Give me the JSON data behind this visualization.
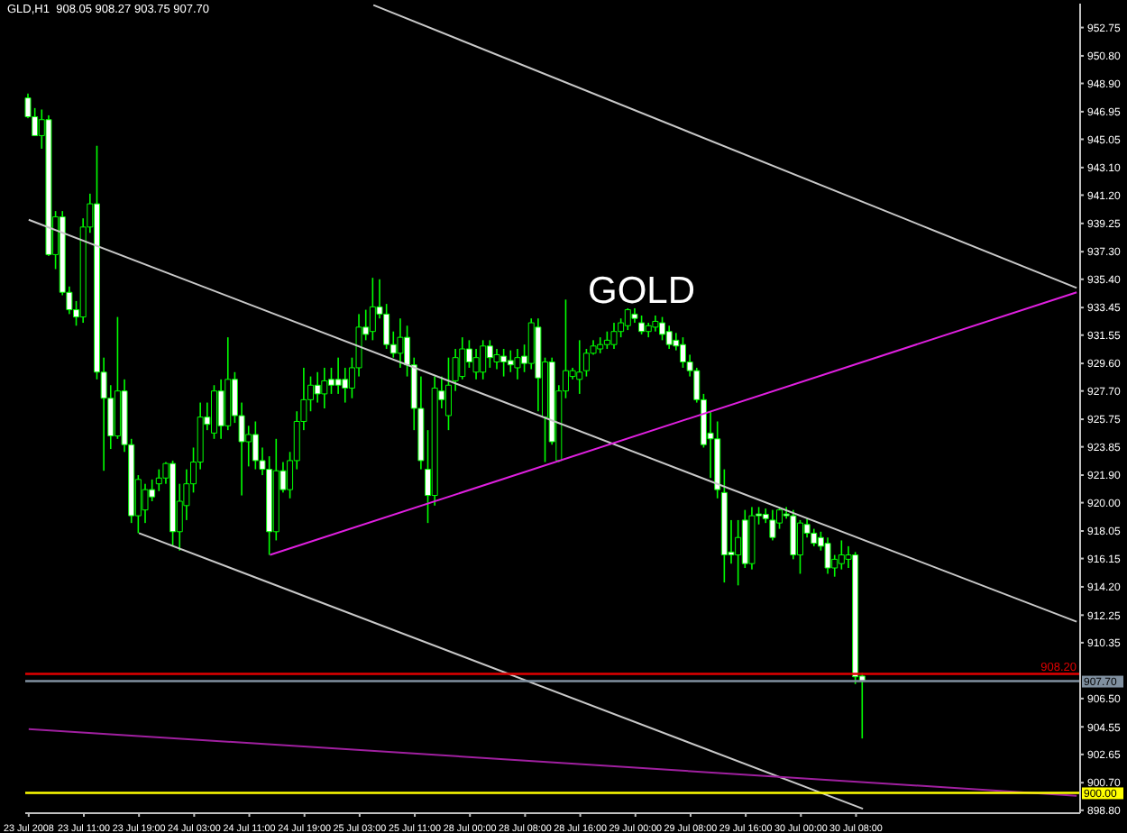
{
  "chart_data": {
    "type": "candlestick",
    "title": "GOLD",
    "subtitle": "GLD,H1  908.05 908.27 903.75 907.70",
    "color": "#00ff00",
    "categories": [
      "23 Jul 2008",
      null,
      null,
      null,
      null,
      null,
      null,
      null,
      "23 Jul 11:00",
      null,
      null,
      null,
      null,
      null,
      null,
      null,
      "23 Jul 19:00",
      null,
      null,
      null,
      null,
      null,
      null,
      null,
      "24 Jul 03:00",
      null,
      null,
      null,
      null,
      null,
      null,
      null,
      "24 Jul 11:00",
      null,
      null,
      null,
      null,
      null,
      null,
      null,
      "24 Jul 19:00",
      null,
      null,
      null,
      null,
      null,
      null,
      null,
      "25 Jul 03:00",
      null,
      null,
      null,
      null,
      null,
      null,
      null,
      "25 Jul 11:00",
      null,
      null,
      null,
      null,
      null,
      null,
      null,
      "28 Jul 00:00",
      null,
      null,
      null,
      null,
      null,
      null,
      null,
      "28 Jul 08:00",
      null,
      null,
      null,
      null,
      null,
      null,
      null,
      "28 Jul 16:00",
      null,
      null,
      null,
      null,
      null,
      null,
      null,
      "29 Jul 00:00",
      null,
      null,
      null,
      null,
      null,
      null,
      null,
      "29 Jul 08:00",
      null,
      null,
      null,
      null,
      null,
      null,
      null,
      "29 Jul 16:00",
      null,
      null,
      null,
      null,
      null,
      null,
      null,
      "30 Jul 00:00",
      null,
      null,
      null,
      null,
      null,
      null,
      null,
      "30 Jul 08:00",
      null,
      null,
      null,
      null,
      null,
      null,
      null,
      null,
      null,
      null,
      null,
      null,
      null,
      null,
      null,
      null,
      null,
      null,
      null,
      null,
      null,
      null,
      null,
      null,
      null,
      null,
      null,
      null,
      null,
      null,
      null,
      null
    ],
    "ohlc": [
      [
        947.9,
        948.2,
        946.5,
        946.6
      ],
      [
        946.6,
        947.2,
        945.3,
        945.3
      ],
      [
        945.3,
        947.1,
        944.4,
        946.4
      ],
      [
        946.4,
        946.7,
        937.0,
        937.1
      ],
      [
        937.1,
        940.1,
        936.1,
        939.7
      ],
      [
        939.7,
        940.1,
        934.3,
        934.5
      ],
      [
        934.5,
        934.9,
        933.0,
        933.3
      ],
      [
        933.3,
        933.9,
        932.2,
        932.8
      ],
      [
        932.8,
        939.6,
        932.4,
        939.0
      ],
      [
        939.0,
        941.3,
        938.6,
        940.6
      ],
      [
        940.6,
        944.6,
        928.5,
        929.0
      ],
      [
        929.0,
        930.0,
        922.2,
        927.2
      ],
      [
        927.2,
        928.1,
        923.7,
        924.6
      ],
      [
        924.6,
        932.8,
        924.4,
        927.7
      ],
      [
        927.7,
        928.5,
        923.5,
        924.0
      ],
      [
        924.0,
        924.4,
        918.6,
        919.1
      ],
      [
        919.1,
        921.9,
        917.9,
        921.6
      ],
      [
        919.5,
        921.3,
        918.6,
        920.9
      ],
      [
        920.9,
        921.6,
        920.1,
        920.4
      ],
      [
        921.3,
        922.3,
        920.8,
        921.7
      ],
      [
        921.7,
        922.8,
        921.3,
        922.7
      ],
      [
        922.7,
        922.9,
        917.0,
        918.0
      ],
      [
        918.0,
        921.3,
        916.7,
        920.1
      ],
      [
        919.8,
        922.3,
        918.8,
        921.3
      ],
      [
        921.3,
        923.8,
        920.7,
        922.8
      ],
      [
        922.8,
        926.9,
        922.3,
        925.9
      ],
      [
        925.9,
        926.9,
        925.0,
        925.4
      ],
      [
        924.8,
        928.1,
        924.4,
        927.7
      ],
      [
        927.7,
        928.5,
        924.4,
        925.3
      ],
      [
        925.3,
        931.4,
        925.0,
        928.5
      ],
      [
        928.5,
        929.0,
        925.5,
        926.0
      ],
      [
        926.0,
        926.9,
        920.5,
        924.2
      ],
      [
        924.2,
        925.3,
        922.5,
        924.7
      ],
      [
        924.7,
        925.6,
        922.3,
        922.9
      ],
      [
        922.9,
        923.8,
        921.9,
        922.3
      ],
      [
        922.3,
        923.2,
        916.4,
        918.0
      ],
      [
        918.0,
        924.4,
        917.4,
        922.2
      ],
      [
        922.2,
        922.8,
        920.7,
        920.9
      ],
      [
        920.9,
        923.5,
        920.3,
        922.9
      ],
      [
        922.9,
        926.3,
        922.3,
        925.6
      ],
      [
        925.6,
        929.3,
        925.0,
        927.1
      ],
      [
        927.1,
        928.7,
        926.3,
        928.1
      ],
      [
        928.1,
        929.0,
        926.9,
        927.5
      ],
      [
        927.5,
        929.3,
        926.5,
        928.4
      ],
      [
        928.5,
        929.3,
        927.5,
        928.1
      ],
      [
        928.5,
        930.0,
        927.5,
        928.1
      ],
      [
        928.5,
        929.3,
        926.9,
        927.9
      ],
      [
        927.9,
        930.0,
        927.2,
        929.3
      ],
      [
        929.3,
        933.0,
        928.7,
        932.1
      ],
      [
        932.1,
        933.3,
        931.2,
        931.6
      ],
      [
        931.8,
        935.5,
        931.2,
        933.5
      ],
      [
        933.5,
        935.4,
        932.7,
        933.0
      ],
      [
        933.0,
        933.7,
        930.6,
        930.9
      ],
      [
        930.9,
        931.8,
        930.0,
        930.3
      ],
      [
        930.3,
        932.7,
        929.3,
        931.4
      ],
      [
        931.4,
        932.2,
        928.7,
        929.5
      ],
      [
        929.5,
        930.0,
        925.0,
        926.5
      ],
      [
        926.5,
        928.7,
        922.3,
        922.9
      ],
      [
        922.3,
        925.0,
        918.6,
        920.5
      ],
      [
        920.5,
        928.7,
        919.8,
        927.9
      ],
      [
        927.7,
        928.7,
        926.5,
        927.1
      ],
      [
        926.0,
        930.0,
        925.0,
        928.1
      ],
      [
        928.4,
        930.6,
        927.7,
        930.0
      ],
      [
        928.7,
        931.4,
        928.5,
        930.6
      ],
      [
        930.6,
        931.2,
        929.3,
        929.7
      ],
      [
        929.0,
        930.6,
        928.5,
        930.0
      ],
      [
        929.0,
        931.2,
        928.5,
        930.8
      ],
      [
        930.8,
        931.2,
        929.3,
        930.0
      ],
      [
        929.7,
        930.6,
        929.2,
        930.2
      ],
      [
        930.1,
        930.6,
        928.7,
        929.7
      ],
      [
        929.8,
        930.5,
        929.0,
        929.5
      ],
      [
        929.3,
        930.6,
        928.5,
        930.0
      ],
      [
        930.1,
        930.9,
        929.0,
        929.6
      ],
      [
        929.6,
        932.7,
        929.2,
        932.4
      ],
      [
        932.1,
        932.7,
        926.3,
        928.6
      ],
      [
        925.9,
        930.0,
        922.8,
        929.7
      ],
      [
        929.7,
        930.0,
        924.0,
        924.2
      ],
      [
        922.9,
        928.1,
        922.8,
        927.7
      ],
      [
        927.7,
        934.0,
        927.2,
        929.1
      ],
      [
        928.7,
        929.3,
        928.5,
        929.1
      ],
      [
        928.5,
        931.2,
        927.5,
        929.0
      ],
      [
        929.1,
        930.6,
        928.7,
        930.3
      ],
      [
        930.3,
        931.2,
        930.2,
        930.8
      ],
      [
        930.6,
        931.4,
        930.3,
        930.9
      ],
      [
        930.9,
        931.8,
        930.6,
        931.2
      ],
      [
        930.9,
        932.4,
        930.6,
        931.8
      ],
      [
        931.8,
        932.7,
        931.4,
        932.4
      ],
      [
        932.2,
        933.4,
        931.9,
        933.3
      ],
      [
        933.0,
        933.4,
        932.4,
        932.7
      ],
      [
        932.4,
        932.9,
        931.6,
        931.8
      ],
      [
        931.8,
        932.4,
        931.4,
        932.2
      ],
      [
        932.1,
        932.9,
        931.8,
        932.5
      ],
      [
        932.4,
        932.8,
        931.2,
        931.6
      ],
      [
        931.8,
        932.2,
        930.6,
        930.9
      ],
      [
        931.2,
        931.7,
        930.5,
        930.8
      ],
      [
        930.9,
        931.4,
        929.3,
        929.7
      ],
      [
        929.7,
        930.2,
        928.7,
        929.1
      ],
      [
        929.1,
        929.3,
        926.9,
        927.1
      ],
      [
        927.1,
        927.5,
        923.8,
        924.0
      ],
      [
        924.8,
        926.3,
        921.7,
        924.4
      ],
      [
        924.4,
        925.6,
        920.3,
        920.9
      ],
      [
        920.7,
        922.3,
        914.5,
        916.4
      ],
      [
        916.6,
        918.8,
        915.8,
        916.4
      ],
      [
        916.4,
        918.8,
        914.3,
        917.6
      ],
      [
        918.8,
        919.5,
        915.5,
        915.8
      ],
      [
        915.8,
        919.7,
        915.4,
        919.1
      ],
      [
        919.2,
        919.7,
        918.5,
        919.1
      ],
      [
        919.2,
        919.6,
        918.6,
        918.9
      ],
      [
        918.8,
        919.5,
        917.4,
        917.6
      ],
      [
        918.6,
        919.7,
        918.2,
        919.5
      ],
      [
        919.2,
        919.7,
        918.9,
        919.1
      ],
      [
        919.1,
        919.5,
        916.1,
        916.4
      ],
      [
        916.4,
        918.8,
        915.1,
        918.6
      ],
      [
        918.5,
        918.9,
        917.6,
        917.9
      ],
      [
        917.9,
        918.2,
        917.0,
        917.2
      ],
      [
        917.6,
        918.0,
        916.7,
        917.0
      ],
      [
        917.2,
        917.6,
        915.1,
        915.5
      ],
      [
        915.5,
        916.4,
        914.9,
        916.1
      ],
      [
        915.8,
        917.4,
        915.4,
        916.4
      ],
      [
        916.1,
        917.0,
        915.5,
        916.4
      ],
      [
        916.4,
        916.6,
        907.5,
        908.0
      ],
      [
        908.05,
        908.27,
        903.75,
        907.7
      ],
      null,
      null,
      null,
      null,
      null,
      null,
      null,
      null,
      null,
      null,
      null,
      null,
      null,
      null,
      null,
      null,
      null,
      null,
      null,
      null,
      null,
      null,
      null,
      null,
      null,
      null,
      null,
      null,
      null,
      null,
      null
    ],
    "series": [
      {
        "type": "line",
        "color": "#c8c8c8",
        "values": [
          null,
          null,
          null,
          null,
          null,
          null,
          null,
          null,
          null,
          null,
          null,
          null,
          null,
          null,
          null,
          null,
          null,
          null,
          null,
          null,
          null,
          null,
          null,
          null,
          null,
          null,
          null,
          null,
          null,
          null,
          null,
          null,
          null,
          null,
          null,
          null,
          null,
          null,
          null,
          null,
          null,
          null,
          null,
          null,
          null,
          null,
          null,
          null,
          null,
          null,
          954.3,
          null,
          null,
          null,
          null,
          null,
          null,
          null,
          null,
          null,
          null,
          null,
          null,
          null,
          null,
          null,
          null,
          null,
          null,
          null,
          null,
          null,
          null,
          null,
          null,
          null,
          null,
          null,
          null,
          null,
          null,
          null,
          null,
          null,
          null,
          null,
          null,
          null,
          null,
          null,
          null,
          null,
          null,
          null,
          null,
          null,
          null,
          null,
          null,
          null,
          null,
          null,
          null,
          null,
          null,
          null,
          null,
          null,
          null,
          null,
          null,
          null,
          null,
          null,
          null,
          null,
          null,
          null,
          null,
          null,
          null,
          null,
          null,
          null,
          null,
          null,
          null,
          null,
          null,
          null,
          null,
          null,
          null,
          null,
          null,
          null,
          null,
          null,
          null,
          null,
          null,
          null,
          null,
          null,
          null,
          null,
          null,
          null,
          null,
          null,
          null,
          null,
          934.8
        ]
      },
      {
        "type": "line",
        "color": "#c8c8c8",
        "values": [
          939.5,
          null,
          null,
          null,
          null,
          null,
          null,
          null,
          null,
          null,
          null,
          null,
          null,
          null,
          null,
          null,
          null,
          null,
          null,
          null,
          null,
          null,
          null,
          null,
          null,
          null,
          null,
          null,
          null,
          null,
          null,
          null,
          null,
          null,
          null,
          null,
          null,
          null,
          null,
          null,
          null,
          null,
          null,
          null,
          null,
          null,
          null,
          null,
          null,
          null,
          null,
          null,
          null,
          null,
          null,
          null,
          null,
          null,
          null,
          null,
          null,
          null,
          null,
          null,
          null,
          null,
          null,
          null,
          null,
          null,
          null,
          null,
          null,
          null,
          null,
          null,
          null,
          null,
          null,
          null,
          null,
          null,
          null,
          null,
          null,
          null,
          null,
          null,
          null,
          null,
          null,
          null,
          null,
          null,
          null,
          null,
          null,
          null,
          null,
          null,
          null,
          null,
          null,
          null,
          null,
          null,
          null,
          null,
          null,
          null,
          null,
          null,
          null,
          null,
          null,
          null,
          null,
          null,
          null,
          null,
          null,
          null,
          null,
          null,
          null,
          null,
          null,
          null,
          null,
          null,
          null,
          null,
          null,
          null,
          null,
          null,
          null,
          null,
          null,
          null,
          null,
          null,
          null,
          null,
          null,
          null,
          null,
          null,
          null,
          null,
          null,
          null,
          911.8
        ]
      },
      {
        "type": "line",
        "color": "#c8c8c8",
        "values": [
          null,
          null,
          null,
          null,
          null,
          null,
          null,
          null,
          null,
          null,
          null,
          null,
          null,
          null,
          null,
          null,
          917.9,
          null,
          null,
          null,
          null,
          null,
          null,
          null,
          null,
          null,
          null,
          null,
          null,
          null,
          null,
          null,
          null,
          null,
          null,
          null,
          null,
          null,
          null,
          null,
          null,
          null,
          null,
          null,
          null,
          null,
          null,
          null,
          null,
          null,
          null,
          null,
          null,
          null,
          null,
          null,
          null,
          null,
          null,
          null,
          null,
          null,
          null,
          null,
          null,
          null,
          null,
          null,
          null,
          null,
          null,
          null,
          null,
          null,
          null,
          null,
          null,
          null,
          null,
          null,
          null,
          null,
          null,
          null,
          null,
          null,
          null,
          null,
          null,
          null,
          null,
          null,
          null,
          null,
          null,
          null,
          null,
          null,
          null,
          null,
          null,
          null,
          null,
          null,
          null,
          null,
          null,
          null,
          null,
          null,
          null,
          null,
          null,
          null,
          null,
          null,
          null,
          null,
          null,
          null,
          null,
          898.9,
          null,
          null,
          null,
          null,
          null,
          null,
          null,
          null,
          null,
          null,
          null,
          null,
          null,
          null,
          null,
          null,
          null,
          null,
          null,
          null,
          null,
          null,
          null,
          null,
          null,
          null,
          null,
          null,
          null,
          null,
          null
        ]
      },
      {
        "type": "line",
        "color": "#e020e0",
        "values": [
          null,
          null,
          null,
          null,
          null,
          null,
          null,
          null,
          null,
          null,
          null,
          null,
          null,
          null,
          null,
          null,
          null,
          null,
          null,
          null,
          null,
          null,
          null,
          null,
          null,
          null,
          null,
          null,
          null,
          null,
          null,
          null,
          null,
          null,
          null,
          916.4,
          null,
          null,
          null,
          null,
          null,
          null,
          null,
          null,
          null,
          null,
          null,
          null,
          null,
          null,
          null,
          null,
          null,
          null,
          null,
          null,
          null,
          null,
          null,
          null,
          null,
          null,
          null,
          null,
          null,
          null,
          null,
          null,
          null,
          null,
          null,
          null,
          null,
          null,
          null,
          null,
          null,
          null,
          null,
          null,
          null,
          null,
          null,
          null,
          null,
          null,
          null,
          null,
          null,
          null,
          null,
          null,
          null,
          null,
          null,
          null,
          null,
          null,
          null,
          null,
          null,
          null,
          null,
          null,
          null,
          null,
          null,
          null,
          null,
          null,
          null,
          null,
          null,
          null,
          null,
          null,
          null,
          null,
          null,
          null,
          null,
          null,
          null,
          null,
          null,
          null,
          null,
          null,
          null,
          null,
          null,
          null,
          null,
          null,
          null,
          null,
          null,
          null,
          null,
          null,
          null,
          null,
          null,
          null,
          null,
          null,
          null,
          null,
          null,
          null,
          null,
          null,
          934.5
        ]
      },
      {
        "type": "line",
        "color": "#a020a0",
        "values": [
          904.4,
          null,
          null,
          null,
          null,
          null,
          null,
          null,
          null,
          null,
          null,
          null,
          null,
          null,
          null,
          null,
          null,
          null,
          null,
          null,
          null,
          null,
          null,
          null,
          null,
          null,
          null,
          null,
          null,
          null,
          null,
          null,
          null,
          null,
          null,
          null,
          null,
          null,
          null,
          null,
          null,
          null,
          null,
          null,
          null,
          null,
          null,
          null,
          null,
          null,
          null,
          null,
          null,
          null,
          null,
          null,
          null,
          null,
          null,
          null,
          null,
          null,
          null,
          null,
          null,
          null,
          null,
          null,
          null,
          null,
          null,
          null,
          null,
          null,
          null,
          null,
          null,
          null,
          null,
          null,
          null,
          null,
          null,
          null,
          null,
          null,
          null,
          null,
          null,
          null,
          null,
          null,
          null,
          null,
          null,
          null,
          null,
          null,
          null,
          null,
          null,
          null,
          null,
          null,
          null,
          null,
          null,
          null,
          null,
          null,
          null,
          null,
          null,
          null,
          null,
          null,
          null,
          null,
          null,
          null,
          null,
          null,
          null,
          null,
          null,
          null,
          null,
          null,
          null,
          null,
          null,
          null,
          null,
          null,
          null,
          null,
          null,
          null,
          null,
          null,
          null,
          null,
          null,
          null,
          null,
          null,
          null,
          null,
          null,
          null,
          null,
          null,
          899.8
        ]
      }
    ],
    "ylim": [
      898.6,
      954.4
    ],
    "yticks": [
      952.75,
      {
        "value": 950.8,
        "label": "950.80"
      },
      {
        "value": 948.9,
        "label": "948.90"
      },
      946.95,
      945.05,
      {
        "value": 943.1,
        "label": "943.10"
      },
      {
        "value": 941.2,
        "label": "941.20"
      },
      939.25,
      {
        "value": 937.3,
        "label": "937.30"
      },
      {
        "value": 935.4,
        "label": "935.40"
      },
      933.45,
      931.55,
      {
        "value": 929.6,
        "label": "929.60"
      },
      {
        "value": 927.7,
        "label": "927.70"
      },
      925.75,
      923.85,
      {
        "value": 921.9,
        "label": "921.90"
      },
      {
        "value": 920,
        "label": "920.00"
      },
      918.05,
      916.15,
      {
        "value": 914.2,
        "label": "914.20"
      },
      912.25,
      910.35,
      {
        "value": 906.5,
        "label": "906.50"
      },
      904.55,
      902.65,
      {
        "value": 900.7,
        "label": "900.70"
      },
      {
        "value": 898.8,
        "label": "898.80"
      }
    ],
    "ref_lines": [
      {
        "axis": "y",
        "value": 908.2,
        "label": "908.20",
        "color": "#e00000"
      },
      {
        "axis": "y",
        "value": 907.7,
        "label": "907.70",
        "color": "#8090a0"
      },
      {
        "axis": "y",
        "value": 900,
        "label": "900.00",
        "color": "#ffff00"
      }
    ]
  }
}
